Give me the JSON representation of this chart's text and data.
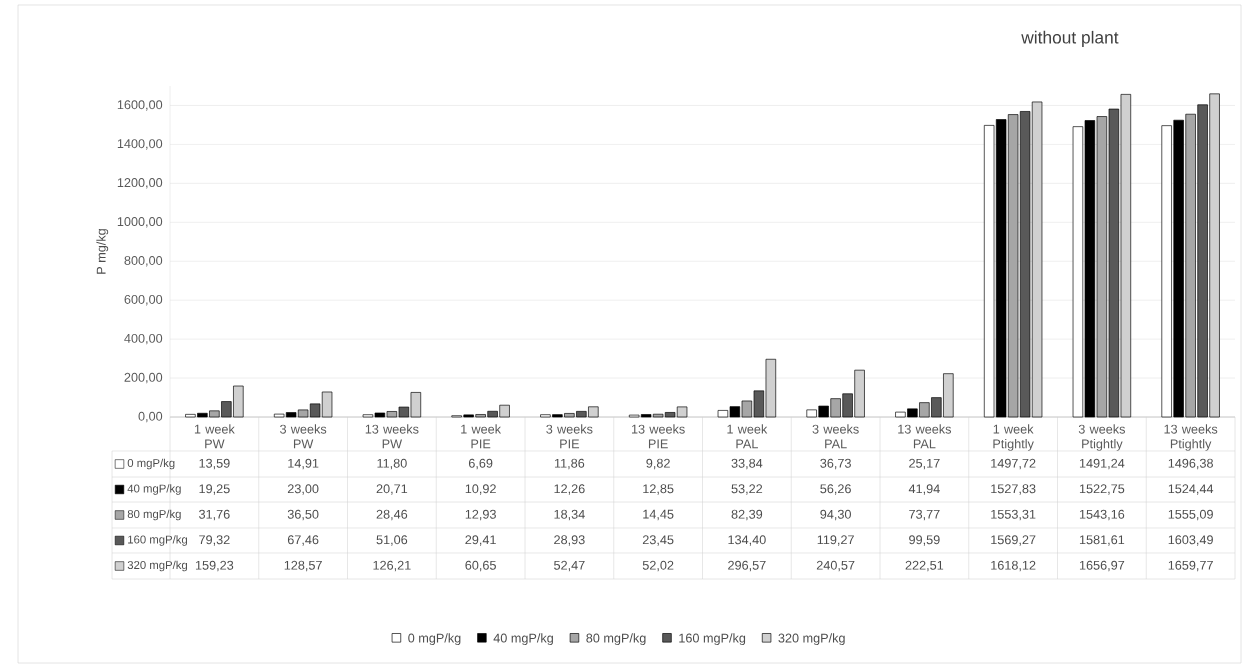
{
  "chart_data": {
    "type": "bar",
    "title": "without plant",
    "ylabel": "P mg/kg",
    "categories": [
      "1 week PW",
      "3 weeks PW",
      "13 weeks PW",
      "1 week PIE",
      "3 weeks PIE",
      "13 weeks PIE",
      "1 week PAL",
      "3 weeks PAL",
      "13 weeks PAL",
      "1 week Ptightly",
      "3 weeks Ptightly",
      "13 weeks Ptightly"
    ],
    "series": [
      {
        "name": "0 mgP/kg",
        "color": "#ffffff",
        "values": [
          13.59,
          14.91,
          11.8,
          6.69,
          11.86,
          9.82,
          33.84,
          36.73,
          25.17,
          1497.72,
          1491.24,
          1496.38
        ],
        "value_labels": [
          "13,59",
          "14,91",
          "11,80",
          "6,69",
          "11,86",
          "9,82",
          "33,84",
          "36,73",
          "25,17",
          "1497,72",
          "1491,24",
          "1496,38"
        ]
      },
      {
        "name": "40 mgP/kg",
        "color": "#000000",
        "values": [
          19.25,
          23.0,
          20.71,
          10.92,
          12.26,
          12.85,
          53.22,
          56.26,
          41.94,
          1527.83,
          1522.75,
          1524.44
        ],
        "value_labels": [
          "19,25",
          "23,00",
          "20,71",
          "10,92",
          "12,26",
          "12,85",
          "53,22",
          "56,26",
          "41,94",
          "1527,83",
          "1522,75",
          "1524,44"
        ]
      },
      {
        "name": "80 mgP/kg",
        "color": "#a6a6a6",
        "values": [
          31.76,
          36.5,
          28.46,
          12.93,
          18.34,
          14.45,
          82.39,
          94.3,
          73.77,
          1553.31,
          1543.16,
          1555.09
        ],
        "value_labels": [
          "31,76",
          "36,50",
          "28,46",
          "12,93",
          "18,34",
          "14,45",
          "82,39",
          "94,30",
          "73,77",
          "1553,31",
          "1543,16",
          "1555,09"
        ]
      },
      {
        "name": "160 mgP/kg",
        "color": "#595959",
        "values": [
          79.32,
          67.46,
          51.06,
          29.41,
          28.93,
          23.45,
          134.4,
          119.27,
          99.59,
          1569.27,
          1581.61,
          1603.49
        ],
        "value_labels": [
          "79,32",
          "67,46",
          "51,06",
          "29,41",
          "28,93",
          "23,45",
          "134,40",
          "119,27",
          "99,59",
          "1569,27",
          "1581,61",
          "1603,49"
        ]
      },
      {
        "name": "320 mgP/kg",
        "color": "#d0d0d0",
        "values": [
          159.23,
          128.57,
          126.21,
          60.65,
          52.47,
          52.02,
          296.57,
          240.57,
          222.51,
          1618.12,
          1656.97,
          1659.77
        ],
        "value_labels": [
          "159,23",
          "128,57",
          "126,21",
          "60,65",
          "52,47",
          "52,02",
          "296,57",
          "240,57",
          "222,51",
          "1618,12",
          "1656,97",
          "1659,77"
        ]
      }
    ],
    "ylim": [
      0,
      1700
    ],
    "yticks": [
      {
        "value": 0,
        "label": "0,00"
      },
      {
        "value": 200,
        "label": "200,00"
      },
      {
        "value": 400,
        "label": "400,00"
      },
      {
        "value": 600,
        "label": "600,00"
      },
      {
        "value": 800,
        "label": "800,00"
      },
      {
        "value": 1000,
        "label": "1000,00"
      },
      {
        "value": 1200,
        "label": "1200,00"
      },
      {
        "value": 1400,
        "label": "1400,00"
      },
      {
        "value": 1600,
        "label": "1600,00"
      }
    ],
    "grid": "y",
    "legend": "bottom"
  }
}
